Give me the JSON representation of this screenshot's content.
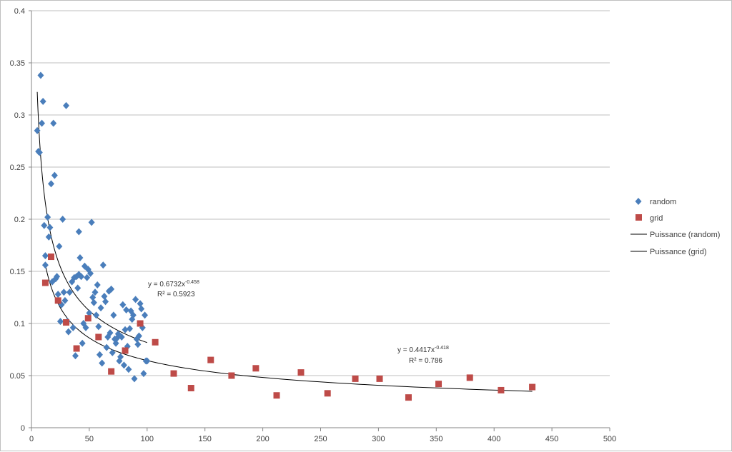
{
  "chart_data": {
    "type": "scatter",
    "title": "",
    "xlabel": "",
    "ylabel": "",
    "xlim": [
      0,
      500
    ],
    "ylim": [
      0,
      0.4
    ],
    "x_ticks": [
      "0",
      "50",
      "100",
      "150",
      "200",
      "250",
      "300",
      "350",
      "400",
      "450",
      "500"
    ],
    "y_ticks": [
      "0",
      "0.05",
      "0.1",
      "0.15",
      "0.2",
      "0.25",
      "0.3",
      "0.35",
      "0.4"
    ],
    "grid": "horizontal",
    "legend_position": "right",
    "series": [
      {
        "name": "random",
        "marker": "diamond",
        "color": "#4a7ebb",
        "points": [
          [
            5,
            0.285
          ],
          [
            6,
            0.265
          ],
          [
            7,
            0.264
          ],
          [
            8,
            0.338
          ],
          [
            9,
            0.292
          ],
          [
            10,
            0.313
          ],
          [
            11,
            0.194
          ],
          [
            12,
            0.156
          ],
          [
            12,
            0.165
          ],
          [
            14,
            0.202
          ],
          [
            15,
            0.183
          ],
          [
            16,
            0.192
          ],
          [
            17,
            0.234
          ],
          [
            18,
            0.14
          ],
          [
            19,
            0.292
          ],
          [
            20,
            0.242
          ],
          [
            21,
            0.143
          ],
          [
            22,
            0.145
          ],
          [
            23,
            0.128
          ],
          [
            24,
            0.174
          ],
          [
            25,
            0.102
          ],
          [
            26,
            0.118
          ],
          [
            27,
            0.2
          ],
          [
            28,
            0.13
          ],
          [
            29,
            0.122
          ],
          [
            30,
            0.309
          ],
          [
            31,
            0.102
          ],
          [
            32,
            0.092
          ],
          [
            33,
            0.13
          ],
          [
            35,
            0.14
          ],
          [
            36,
            0.096
          ],
          [
            37,
            0.144
          ],
          [
            38,
            0.069
          ],
          [
            39,
            0.145
          ],
          [
            40,
            0.134
          ],
          [
            41,
            0.188
          ],
          [
            41,
            0.147
          ],
          [
            42,
            0.163
          ],
          [
            43,
            0.145
          ],
          [
            44,
            0.081
          ],
          [
            45,
            0.1
          ],
          [
            46,
            0.155
          ],
          [
            47,
            0.096
          ],
          [
            48,
            0.144
          ],
          [
            49,
            0.152
          ],
          [
            50,
            0.11
          ],
          [
            51,
            0.148
          ],
          [
            52,
            0.197
          ],
          [
            53,
            0.125
          ],
          [
            54,
            0.12
          ],
          [
            55,
            0.13
          ],
          [
            56,
            0.108
          ],
          [
            57,
            0.137
          ],
          [
            58,
            0.097
          ],
          [
            59,
            0.07
          ],
          [
            60,
            0.115
          ],
          [
            61,
            0.062
          ],
          [
            62,
            0.156
          ],
          [
            63,
            0.126
          ],
          [
            64,
            0.121
          ],
          [
            65,
            0.077
          ],
          [
            66,
            0.087
          ],
          [
            67,
            0.131
          ],
          [
            68,
            0.091
          ],
          [
            69,
            0.133
          ],
          [
            70,
            0.072
          ],
          [
            71,
            0.108
          ],
          [
            72,
            0.085
          ],
          [
            73,
            0.081
          ],
          [
            74,
            0.086
          ],
          [
            75,
            0.09
          ],
          [
            76,
            0.064
          ],
          [
            77,
            0.068
          ],
          [
            78,
            0.087
          ],
          [
            79,
            0.118
          ],
          [
            80,
            0.06
          ],
          [
            81,
            0.094
          ],
          [
            82,
            0.113
          ],
          [
            83,
            0.078
          ],
          [
            84,
            0.056
          ],
          [
            85,
            0.095
          ],
          [
            86,
            0.112
          ],
          [
            87,
            0.104
          ],
          [
            88,
            0.108
          ],
          [
            89,
            0.047
          ],
          [
            90,
            0.123
          ],
          [
            91,
            0.085
          ],
          [
            92,
            0.08
          ],
          [
            93,
            0.088
          ],
          [
            94,
            0.119
          ],
          [
            95,
            0.114
          ],
          [
            96,
            0.096
          ],
          [
            97,
            0.052
          ],
          [
            98,
            0.108
          ],
          [
            99,
            0.064
          ],
          [
            100,
            0.064
          ]
        ]
      },
      {
        "name": "grid",
        "marker": "square",
        "color": "#be4b48",
        "points": [
          [
            12,
            0.139
          ],
          [
            17,
            0.164
          ],
          [
            23,
            0.122
          ],
          [
            30,
            0.101
          ],
          [
            39,
            0.076
          ],
          [
            49,
            0.105
          ],
          [
            58,
            0.087
          ],
          [
            69,
            0.054
          ],
          [
            81,
            0.074
          ],
          [
            94,
            0.1
          ],
          [
            107,
            0.082
          ],
          [
            123,
            0.052
          ],
          [
            138,
            0.038
          ],
          [
            155,
            0.065
          ],
          [
            173,
            0.05
          ],
          [
            194,
            0.057
          ],
          [
            212,
            0.031
          ],
          [
            233,
            0.053
          ],
          [
            256,
            0.033
          ],
          [
            280,
            0.047
          ],
          [
            301,
            0.047
          ],
          [
            326,
            0.029
          ],
          [
            352,
            0.042
          ],
          [
            379,
            0.048
          ],
          [
            406,
            0.036
          ],
          [
            433,
            0.039
          ]
        ]
      }
    ],
    "trendlines": [
      {
        "name": "Puissance (random)",
        "a": 0.6732,
        "b": -0.458,
        "x_range": [
          5,
          100
        ],
        "equation_label": "y = 0.6732x",
        "equation_exponent": "-0.458",
        "r2_label": "R² = 0.5923",
        "color": "#000000"
      },
      {
        "name": "Puissance (grid)",
        "a": 0.4417,
        "b": -0.418,
        "x_range": [
          12,
          433
        ],
        "equation_label": "y = 0.4417x",
        "equation_exponent": "-0.418",
        "r2_label": "R² = 0.786",
        "color": "#000000"
      }
    ]
  }
}
